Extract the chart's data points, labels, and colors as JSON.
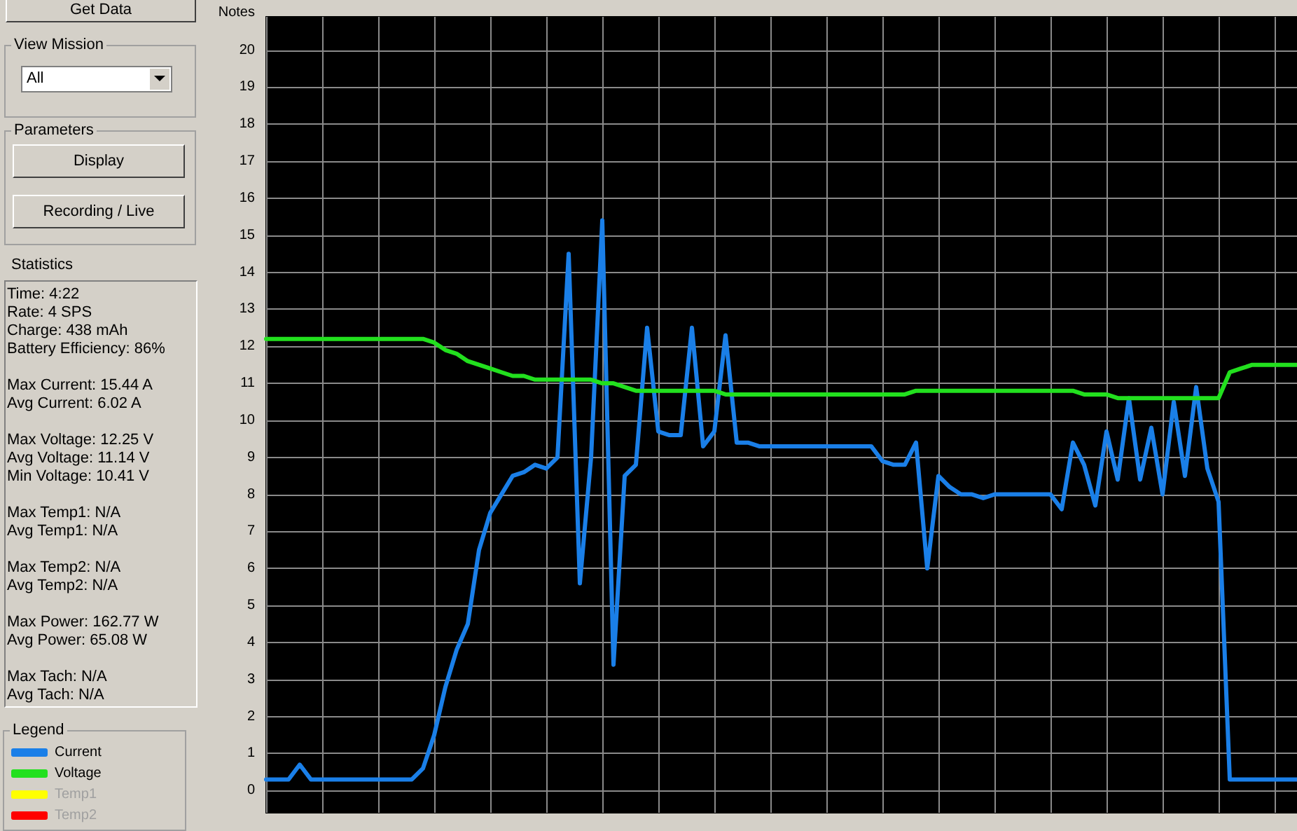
{
  "chart_data": {
    "type": "line",
    "ylabel": "Notes",
    "legend_title": "Legend",
    "categories": [
      null,
      null,
      null,
      null,
      null,
      null,
      null,
      null,
      null,
      null,
      null,
      null,
      null,
      null,
      null,
      null,
      null,
      null,
      null,
      null,
      null,
      null,
      null,
      null,
      null,
      null,
      null,
      null,
      null,
      null,
      null,
      null,
      null,
      null,
      null,
      null,
      null,
      null,
      null,
      null,
      null,
      null,
      null,
      null,
      null,
      null,
      null,
      null,
      null,
      null,
      null,
      null,
      null,
      null,
      null,
      null,
      null,
      null,
      null,
      null,
      null,
      null,
      null,
      null,
      null,
      null,
      null,
      null,
      null,
      null,
      null,
      null,
      null,
      null,
      null,
      null,
      null,
      null,
      null,
      null,
      null,
      null,
      null,
      null,
      null,
      null,
      null,
      null,
      null,
      null,
      null,
      null,
      null
    ],
    "series": [
      {
        "name": "Current",
        "color": "#1a7fe8",
        "values": [
          0.3,
          0.3,
          0.3,
          0.7,
          0.3,
          0.3,
          0.3,
          0.3,
          0.3,
          0.3,
          0.3,
          0.3,
          0.3,
          0.3,
          0.6,
          1.5,
          2.8,
          3.8,
          4.5,
          6.5,
          7.5,
          8.0,
          8.5,
          8.6,
          8.8,
          8.7,
          9.0,
          14.5,
          5.6,
          9.0,
          15.4,
          3.4,
          8.5,
          8.8,
          12.5,
          9.7,
          9.6,
          9.6,
          12.5,
          9.3,
          9.7,
          12.3,
          9.4,
          9.4,
          9.3,
          9.3,
          9.3,
          9.3,
          9.3,
          9.3,
          9.3,
          9.3,
          9.3,
          9.3,
          9.3,
          8.9,
          8.8,
          8.8,
          9.4,
          6.0,
          8.5,
          8.2,
          8.0,
          8.0,
          7.9,
          8.0,
          8.0,
          8.0,
          8.0,
          8.0,
          8.0,
          7.6,
          9.4,
          8.8,
          7.7,
          9.7,
          8.4,
          10.6,
          8.4,
          9.8,
          8.0,
          10.5,
          8.5,
          10.9,
          8.7,
          7.8,
          0.3,
          0.3,
          0.3,
          0.3,
          0.3,
          0.3,
          0.3
        ]
      },
      {
        "name": "Voltage",
        "color": "#22e01e",
        "values": [
          12.2,
          12.2,
          12.2,
          12.2,
          12.2,
          12.2,
          12.2,
          12.2,
          12.2,
          12.2,
          12.2,
          12.2,
          12.2,
          12.2,
          12.2,
          12.1,
          11.9,
          11.8,
          11.6,
          11.5,
          11.4,
          11.3,
          11.2,
          11.2,
          11.1,
          11.1,
          11.1,
          11.1,
          11.1,
          11.1,
          11.0,
          11.0,
          10.9,
          10.8,
          10.8,
          10.8,
          10.8,
          10.8,
          10.8,
          10.8,
          10.8,
          10.7,
          10.7,
          10.7,
          10.7,
          10.7,
          10.7,
          10.7,
          10.7,
          10.7,
          10.7,
          10.7,
          10.7,
          10.7,
          10.7,
          10.7,
          10.7,
          10.7,
          10.8,
          10.8,
          10.8,
          10.8,
          10.8,
          10.8,
          10.8,
          10.8,
          10.8,
          10.8,
          10.8,
          10.8,
          10.8,
          10.8,
          10.8,
          10.7,
          10.7,
          10.7,
          10.6,
          10.6,
          10.6,
          10.6,
          10.6,
          10.6,
          10.6,
          10.6,
          10.6,
          10.6,
          11.3,
          11.4,
          11.5,
          11.5,
          11.5,
          11.5,
          11.5
        ]
      },
      {
        "name": "Temp1",
        "color": "#ffff00",
        "values": [
          null,
          null,
          null,
          null,
          null,
          null,
          null,
          null,
          null,
          null,
          null,
          null,
          null,
          null,
          null,
          null,
          null,
          null,
          null,
          null,
          null,
          null,
          null,
          null,
          null,
          null,
          null,
          null,
          null,
          null,
          null,
          null,
          null,
          null,
          null,
          null,
          null,
          null,
          null,
          null,
          null,
          null,
          null,
          null,
          null,
          null,
          null,
          null,
          null,
          null,
          null,
          null,
          null,
          null,
          null,
          null,
          null,
          null,
          null,
          null,
          null,
          null,
          null,
          null,
          null,
          null,
          null,
          null,
          null,
          null,
          null,
          null,
          null,
          null,
          null,
          null,
          null,
          null,
          null,
          null,
          null,
          null,
          null,
          null,
          null,
          null,
          null,
          null,
          null,
          null,
          null,
          null,
          null
        ]
      },
      {
        "name": "Temp2",
        "color": "#ff0000",
        "values": [
          null,
          null,
          null,
          null,
          null,
          null,
          null,
          null,
          null,
          null,
          null,
          null,
          null,
          null,
          null,
          null,
          null,
          null,
          null,
          null,
          null,
          null,
          null,
          null,
          null,
          null,
          null,
          null,
          null,
          null,
          null,
          null,
          null,
          null,
          null,
          null,
          null,
          null,
          null,
          null,
          null,
          null,
          null,
          null,
          null,
          null,
          null,
          null,
          null,
          null,
          null,
          null,
          null,
          null,
          null,
          null,
          null,
          null,
          null,
          null,
          null,
          null,
          null,
          null,
          null,
          null,
          null,
          null,
          null,
          null,
          null,
          null,
          null,
          null,
          null,
          null,
          null,
          null,
          null,
          null,
          null,
          null,
          null,
          null,
          null,
          null,
          null,
          null,
          null,
          null,
          null,
          null,
          null
        ]
      }
    ],
    "ylim": [
      -0.6,
      20.9
    ],
    "yticks": [
      0,
      1,
      2,
      3,
      4,
      5,
      6,
      7,
      8,
      9,
      10,
      11,
      12,
      13,
      14,
      15,
      16,
      17,
      18,
      19,
      20
    ],
    "grid": true,
    "legend": "bottom left",
    "tick_labels": "y",
    "line_style": "solid",
    "annotations": [
      "Get Data",
      "View Mission",
      "All",
      "Parameters",
      "Display",
      "Recording / Live",
      "Statistics",
      "Time: 4:22",
      "Rate: 4 SPS",
      "Charge: 438 mAh",
      "Battery Efficiency: 86%",
      "Max Current: 15.44 A",
      "Avg Current: 6.02 A",
      "Max Voltage: 12.25 V",
      "Avg Voltage: 11.14 V",
      "Min Voltage: 10.41 V",
      "Max Temp1: N/A",
      "Avg Temp1: N/A",
      "Max Temp2: N/A",
      "Avg Temp2: N/A",
      "Max Power: 162.77 W",
      "Avg Power: 65.08 W",
      "Max Tach: N/A",
      "Avg Tach: N/A"
    ]
  }
}
